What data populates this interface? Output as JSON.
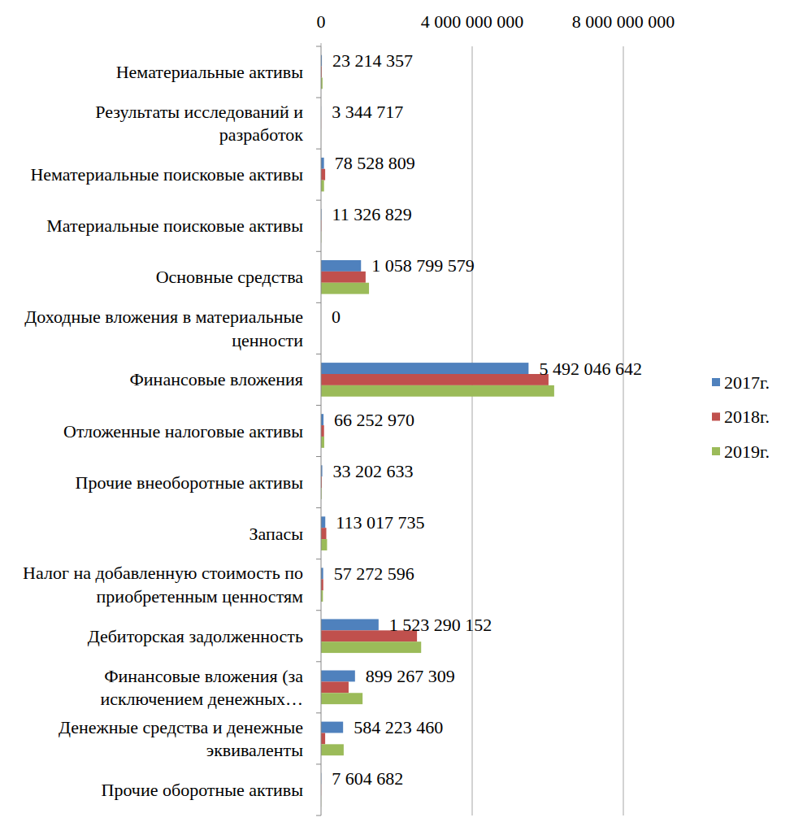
{
  "chart_data": {
    "type": "bar",
    "orientation": "horizontal",
    "grid": true,
    "legend": "right",
    "categories": [
      "Нематериальные активы",
      "Результаты исследований и разработок",
      "Нематериальные поисковые активы",
      "Материальные поисковые активы",
      "Основные средства",
      "Доходные вложения в материальные ценности",
      "Финансовые вложения",
      "Отложенные налоговые активы",
      "Прочие внеоборотные активы",
      "Запасы",
      "Налог на добавленную стоимость по приобретенным ценностям",
      "Дебиторская задолженность",
      "Финансовые вложения (за исключением денежных…",
      "Денежные средства и денежные эквиваленты",
      "Прочие оборотные активы"
    ],
    "xlim": [
      0,
      8000000000
    ],
    "xticks": [
      0,
      {
        "value": 4000000000,
        "label": "4 000 000 000"
      },
      {
        "value": 8000000000,
        "label": "8 000 000 000"
      }
    ],
    "series": [
      {
        "name": "2017г.",
        "color": "#4f81bd",
        "data_labels": true,
        "values": [
          23214357,
          3344717,
          78528809,
          11326829,
          1058799579,
          0,
          5492046642,
          66252970,
          33202633,
          113017735,
          57272596,
          1523290152,
          899267309,
          584223460,
          7604682
        ],
        "value_labels": [
          "23 214 357",
          "3 344 717",
          "78 528 809",
          "11 326 829",
          "1 058 799 579",
          "0",
          "5 492 046 642",
          "66 252 970",
          "33 202 633",
          "113 017 735",
          "57 272 596",
          "1 523 290 152",
          "899 267 309",
          "584 223 460",
          "7 604 682"
        ]
      },
      {
        "name": "2018г.",
        "color": "#c0504d",
        "values": [
          20000000,
          3000000,
          110000000,
          10000000,
          1180000000,
          0,
          6020000000,
          80000000,
          20000000,
          140000000,
          60000000,
          2540000000,
          730000000,
          110000000,
          5000000
        ]
      },
      {
        "name": "2019г.",
        "color": "#9bbb59",
        "values": [
          40000000,
          2000000,
          80000000,
          8000000,
          1270000000,
          0,
          6170000000,
          85000000,
          15000000,
          160000000,
          50000000,
          2650000000,
          1100000000,
          600000000,
          4000000
        ]
      }
    ]
  }
}
